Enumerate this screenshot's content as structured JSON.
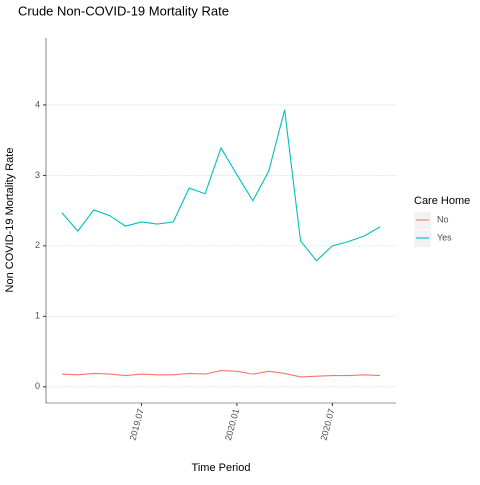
{
  "chart_data": {
    "type": "line",
    "title": "Crude Non-COVID-19 Mortality Rate",
    "x_label": "Time Period",
    "y_label": "Non COVID-19 Mortality Rate",
    "categories": [
      null,
      null,
      null,
      null,
      null,
      "2019.07",
      null,
      null,
      null,
      null,
      null,
      "2020.01",
      null,
      null,
      null,
      null,
      null,
      "2020.07",
      null,
      null,
      null
    ],
    "series": [
      {
        "name": "No",
        "color": "#f8766d",
        "values": [
          0.18,
          0.17,
          0.19,
          0.18,
          0.16,
          0.18,
          0.17,
          0.17,
          0.19,
          0.18,
          0.23,
          0.22,
          0.18,
          0.22,
          0.19,
          0.14,
          0.15,
          0.16,
          0.16,
          0.17,
          0.16
        ]
      },
      {
        "name": "Yes",
        "color": "#00bfc4",
        "values": [
          2.47,
          2.21,
          2.51,
          2.43,
          2.28,
          2.34,
          2.31,
          2.34,
          2.82,
          2.74,
          3.39,
          3.01,
          2.64,
          3.06,
          3.93,
          2.07,
          1.79,
          2.0,
          2.06,
          2.14,
          2.27
        ]
      }
    ],
    "legend_title": "Care Home",
    "legend": "right",
    "ylim": [
      -0.23,
      4.95
    ],
    "yticks": [
      0,
      1,
      2,
      3,
      4
    ],
    "grid": true
  }
}
